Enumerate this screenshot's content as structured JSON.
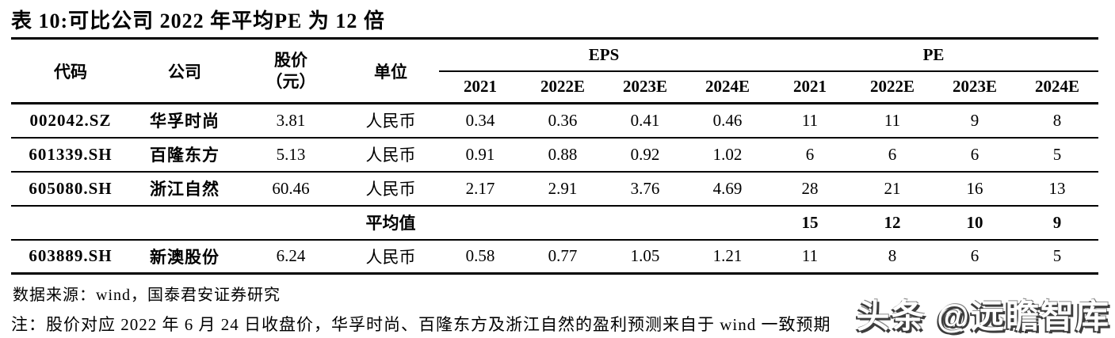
{
  "title": "表 10:可比公司 2022 年平均PE 为 12 倍",
  "table": {
    "columns": {
      "code": "代码",
      "company": "公司",
      "price_line1": "股价",
      "price_line2": "（元）",
      "unit": "单位"
    },
    "groups": {
      "eps": "EPS",
      "pe": "PE"
    },
    "sub_headers": [
      "2021",
      "2022E",
      "2023E",
      "2024E",
      "2021",
      "2022E",
      "2023E",
      "2024E"
    ],
    "rows": [
      {
        "code": "002042.SZ",
        "company": "华孚时尚",
        "price": "3.81",
        "unit": "人民币",
        "eps": [
          "0.34",
          "0.36",
          "0.41",
          "0.46"
        ],
        "pe": [
          "11",
          "11",
          "9",
          "8"
        ],
        "bold": false
      },
      {
        "code": "601339.SH",
        "company": "百隆东方",
        "price": "5.13",
        "unit": "人民币",
        "eps": [
          "0.91",
          "0.88",
          "0.92",
          "1.02"
        ],
        "pe": [
          "6",
          "6",
          "6",
          "5"
        ],
        "bold": false
      },
      {
        "code": "605080.SH",
        "company": "浙江自然",
        "price": "60.46",
        "unit": "人民币",
        "eps": [
          "2.17",
          "2.91",
          "3.76",
          "4.69"
        ],
        "pe": [
          "28",
          "21",
          "16",
          "13"
        ],
        "bold": false
      },
      {
        "code": "",
        "company": "",
        "price": "",
        "unit": "平均值",
        "eps": [
          "",
          "",
          "",
          ""
        ],
        "pe": [
          "15",
          "12",
          "10",
          "9"
        ],
        "bold": true
      },
      {
        "code": "603889.SH",
        "company": "新澳股份",
        "price": "6.24",
        "unit": "人民币",
        "eps": [
          "0.58",
          "0.77",
          "1.05",
          "1.21"
        ],
        "pe": [
          "11",
          "8",
          "6",
          "5"
        ],
        "bold": false
      }
    ]
  },
  "footer": {
    "source": "数据来源：wind，国泰君安证券研究",
    "note": "注：股价对应 2022 年 6 月 24 日收盘价，华孚时尚、百隆东方及浙江自然的盈利预测来自于 wind 一致预期"
  },
  "watermark": "头条 @远瞻智库"
}
